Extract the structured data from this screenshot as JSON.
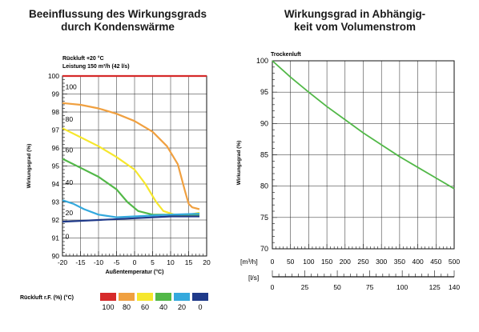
{
  "chart_data": [
    {
      "type": "line",
      "title": "Beeinflussung des Wirkungsgrads\ndurch Kondenswärme",
      "subtitle": [
        "Rückluft +20 °C",
        "Leistung 150 m³/h (42 l/s)"
      ],
      "xlabel": "Außentemperatur (°C)",
      "ylabel": "Wirkungsgrad (%)",
      "xlim": [
        -20,
        20
      ],
      "ylim": [
        90,
        100
      ],
      "xticks": [
        -20,
        -15,
        -10,
        -5,
        0,
        5,
        10,
        15,
        20
      ],
      "yticks": [
        90,
        91,
        92,
        93,
        94,
        95,
        96,
        97,
        98,
        99,
        100
      ],
      "grid": true,
      "series": [
        {
          "name": "100",
          "color": "#d62a2a",
          "label_at": [
            -19.2,
            99.4
          ],
          "points": [
            [
              -20,
              100
            ],
            [
              20,
              100
            ]
          ]
        },
        {
          "name": "80",
          "color": "#f0a040",
          "label_at": [
            -19.2,
            97.6
          ],
          "points": [
            [
              -20,
              98.5
            ],
            [
              -15,
              98.4
            ],
            [
              -10,
              98.2
            ],
            [
              -5,
              97.9
            ],
            [
              0,
              97.5
            ],
            [
              5,
              96.9
            ],
            [
              9,
              96.1
            ],
            [
              12,
              95.1
            ],
            [
              14,
              93.6
            ],
            [
              15,
              92.9
            ],
            [
              16,
              92.7
            ],
            [
              18,
              92.6
            ]
          ]
        },
        {
          "name": "60",
          "color": "#f6e72d",
          "label_at": [
            -19.2,
            95.9
          ],
          "points": [
            [
              -20,
              97.1
            ],
            [
              -15,
              96.6
            ],
            [
              -10,
              96.1
            ],
            [
              -5,
              95.5
            ],
            [
              0,
              94.8
            ],
            [
              3,
              94.0
            ],
            [
              6,
              93.0
            ],
            [
              8,
              92.5
            ],
            [
              11,
              92.3
            ],
            [
              15,
              92.3
            ],
            [
              18,
              92.4
            ]
          ]
        },
        {
          "name": "40",
          "color": "#52b848",
          "label_at": [
            -19.2,
            94.1
          ],
          "points": [
            [
              -20,
              95.4
            ],
            [
              -15,
              94.9
            ],
            [
              -10,
              94.4
            ],
            [
              -5,
              93.7
            ],
            [
              -2,
              93.0
            ],
            [
              1,
              92.5
            ],
            [
              5,
              92.3
            ],
            [
              10,
              92.3
            ],
            [
              18,
              92.3
            ]
          ]
        },
        {
          "name": "20",
          "color": "#34a9dd",
          "label_at": [
            -19.2,
            92.4
          ],
          "points": [
            [
              -20,
              93.1
            ],
            [
              -17,
              92.9
            ],
            [
              -14,
              92.6
            ],
            [
              -10,
              92.3
            ],
            [
              -5,
              92.15
            ],
            [
              0,
              92.2
            ],
            [
              5,
              92.25
            ],
            [
              10,
              92.3
            ],
            [
              18,
              92.35
            ]
          ]
        },
        {
          "name": "0",
          "color": "#1f3a8a",
          "label_at": [
            -19.2,
            91.1
          ],
          "points": [
            [
              -20,
              91.9
            ],
            [
              -10,
              92.0
            ],
            [
              0,
              92.1
            ],
            [
              10,
              92.2
            ],
            [
              18,
              92.2
            ]
          ]
        }
      ],
      "legend": {
        "label": "Rückluft r.F. (%) (°C)",
        "position": "bottom",
        "entries": [
          {
            "label": "100",
            "color": "#d62a2a"
          },
          {
            "label": "80",
            "color": "#f0a040"
          },
          {
            "label": "60",
            "color": "#f6e72d"
          },
          {
            "label": "40",
            "color": "#52b848"
          },
          {
            "label": "20",
            "color": "#34a9dd"
          },
          {
            "label": "0",
            "color": "#1f3a8a"
          }
        ]
      }
    },
    {
      "type": "line",
      "title": "Wirkungsgrad in Abhängig-\nkeit vom Volumenstrom",
      "annotation": "Trockenluft",
      "ylabel": "Wirkungsgrad (%)",
      "ylim": [
        70,
        100
      ],
      "yticks": [
        70,
        75,
        80,
        85,
        90,
        95,
        100
      ],
      "grid": true,
      "x_axes": [
        {
          "label": "[m³/h]",
          "lim": [
            0,
            500
          ],
          "ticks": [
            0,
            50,
            100,
            150,
            200,
            250,
            300,
            350,
            400,
            450,
            500
          ]
        },
        {
          "label": "[l/s]",
          "lim": [
            0,
            140
          ],
          "ticks": [
            0,
            25,
            50,
            75,
            100,
            125,
            140
          ]
        }
      ],
      "series": [
        {
          "name": "",
          "color": "#52b848",
          "points": [
            [
              0,
              100
            ],
            [
              50,
              97.4
            ],
            [
              100,
              95.0
            ],
            [
              150,
              92.7
            ],
            [
              200,
              90.6
            ],
            [
              250,
              88.5
            ],
            [
              300,
              86.6
            ],
            [
              350,
              84.7
            ],
            [
              400,
              83.0
            ],
            [
              450,
              81.3
            ],
            [
              500,
              79.6
            ]
          ]
        }
      ]
    }
  ]
}
